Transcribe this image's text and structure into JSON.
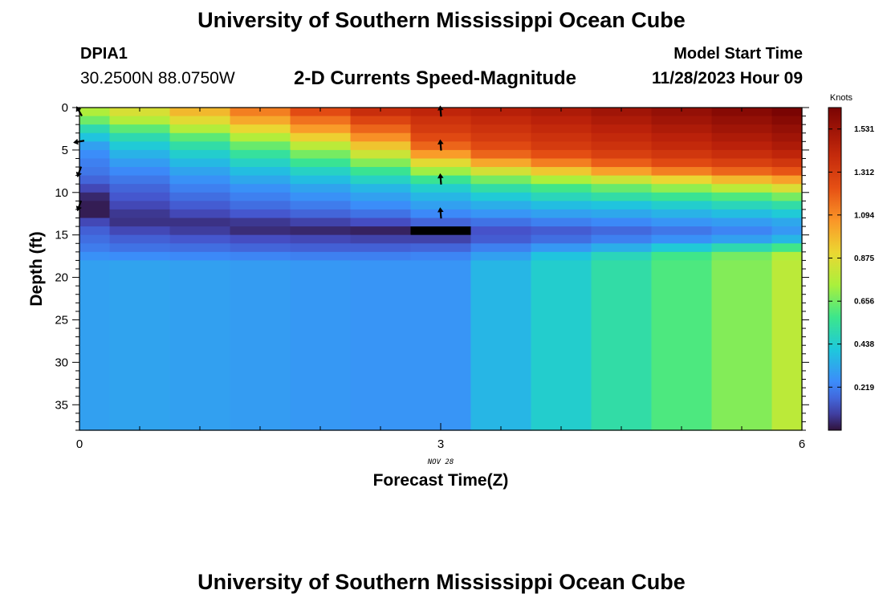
{
  "page": {
    "title": "University of Southern Mississippi Ocean Cube",
    "footer_title": "University of Southern Mississippi Ocean Cube",
    "station_id": "DPIA1",
    "station_coords": "30.2500N  88.0750W",
    "subtitle": "2-D Currents Speed-Magnitude",
    "model_start_label": "Model Start Time",
    "model_start_time": "11/28/2023 Hour 09"
  },
  "chart_data": {
    "type": "heatmap",
    "title": "2-D Currents Speed-Magnitude",
    "xlabel": "Forecast Time(Z)",
    "ylabel": "Depth (ft)",
    "x_date_label": "NOV 28",
    "xlim": [
      0,
      6
    ],
    "ylim": [
      38,
      0
    ],
    "x_ticks": [
      0,
      3,
      6
    ],
    "y_ticks": [
      0,
      5,
      10,
      15,
      20,
      25,
      30,
      35
    ],
    "x_centers": [
      0,
      0.5,
      1,
      1.5,
      2,
      2.5,
      3,
      3.5,
      4,
      4.5,
      5,
      5.5,
      6
    ],
    "depth_edges": [
      0,
      1,
      2,
      3,
      4,
      5,
      6,
      7,
      8,
      9,
      10,
      11,
      12,
      13,
      14,
      15,
      16,
      17,
      18,
      38
    ],
    "speed_knots": [
      [
        0.75,
        0.85,
        0.98,
        1.12,
        1.25,
        1.38,
        1.42,
        1.45,
        1.48,
        1.52,
        1.56,
        1.6,
        1.64
      ],
      [
        0.65,
        0.76,
        0.88,
        1.02,
        1.15,
        1.28,
        1.36,
        1.4,
        1.44,
        1.48,
        1.52,
        1.56,
        1.6
      ],
      [
        0.5,
        0.62,
        0.76,
        0.9,
        1.05,
        1.18,
        1.32,
        1.36,
        1.4,
        1.44,
        1.48,
        1.52,
        1.56
      ],
      [
        0.4,
        0.5,
        0.62,
        0.76,
        0.92,
        1.08,
        1.26,
        1.32,
        1.36,
        1.4,
        1.44,
        1.48,
        1.52
      ],
      [
        0.3,
        0.42,
        0.52,
        0.64,
        0.78,
        0.95,
        1.18,
        1.26,
        1.32,
        1.36,
        1.4,
        1.44,
        1.48
      ],
      [
        0.25,
        0.35,
        0.44,
        0.54,
        0.66,
        0.82,
        1.05,
        1.18,
        1.24,
        1.3,
        1.34,
        1.38,
        1.42
      ],
      [
        0.22,
        0.29,
        0.37,
        0.46,
        0.56,
        0.68,
        0.88,
        1.02,
        1.12,
        1.2,
        1.26,
        1.3,
        1.34
      ],
      [
        0.2,
        0.24,
        0.31,
        0.38,
        0.46,
        0.56,
        0.72,
        0.84,
        0.94,
        1.04,
        1.12,
        1.18,
        1.22
      ],
      [
        0.16,
        0.2,
        0.26,
        0.32,
        0.38,
        0.46,
        0.56,
        0.66,
        0.74,
        0.82,
        0.9,
        0.98,
        1.04
      ],
      [
        0.1,
        0.16,
        0.22,
        0.26,
        0.31,
        0.36,
        0.44,
        0.52,
        0.58,
        0.64,
        0.7,
        0.78,
        0.86
      ],
      [
        0.04,
        0.13,
        0.18,
        0.22,
        0.26,
        0.3,
        0.36,
        0.42,
        0.48,
        0.52,
        0.56,
        0.6,
        0.66
      ],
      [
        0.02,
        0.1,
        0.14,
        0.18,
        0.21,
        0.25,
        0.3,
        0.34,
        0.38,
        0.4,
        0.44,
        0.48,
        0.52
      ],
      [
        0.02,
        0.07,
        0.1,
        0.13,
        0.16,
        0.19,
        0.24,
        0.27,
        0.3,
        0.32,
        0.35,
        0.38,
        0.42
      ],
      [
        0.1,
        0.06,
        0.06,
        0.07,
        0.09,
        0.11,
        0.16,
        0.19,
        0.22,
        0.24,
        0.27,
        0.29,
        0.32
      ],
      [
        0.15,
        0.1,
        0.08,
        0.05,
        0.04,
        0.03,
        0.0,
        0.12,
        0.14,
        0.17,
        0.2,
        0.23,
        0.28
      ],
      [
        0.18,
        0.15,
        0.13,
        0.11,
        0.1,
        0.09,
        0.09,
        0.14,
        0.18,
        0.22,
        0.26,
        0.3,
        0.36
      ],
      [
        0.21,
        0.19,
        0.18,
        0.16,
        0.15,
        0.15,
        0.16,
        0.22,
        0.28,
        0.34,
        0.42,
        0.5,
        0.58
      ],
      [
        0.26,
        0.25,
        0.24,
        0.23,
        0.22,
        0.22,
        0.23,
        0.3,
        0.4,
        0.48,
        0.58,
        0.66,
        0.76
      ],
      [
        0.3,
        0.31,
        0.3,
        0.29,
        0.28,
        0.27,
        0.27,
        0.36,
        0.44,
        0.52,
        0.6,
        0.68,
        0.78
      ]
    ],
    "arrows": [
      {
        "x": 0,
        "depth": 0.5,
        "dir_deg": 150
      },
      {
        "x": 0,
        "depth": 4,
        "dir_deg": 80
      },
      {
        "x": 0,
        "depth": 7.5,
        "dir_deg": 20
      },
      {
        "x": 0,
        "depth": 11.5,
        "dir_deg": 20
      },
      {
        "x": 3,
        "depth": 0.5,
        "dir_deg": 175
      },
      {
        "x": 3,
        "depth": 4.5,
        "dir_deg": 175
      },
      {
        "x": 3,
        "depth": 8.5,
        "dir_deg": 175
      },
      {
        "x": 3,
        "depth": 12.5,
        "dir_deg": 175
      }
    ],
    "colorbar": {
      "label": "Knots",
      "min": 0.0,
      "max": 1.64,
      "ticks": [
        0.219,
        0.438,
        0.656,
        0.875,
        1.094,
        1.312,
        1.531
      ]
    }
  }
}
